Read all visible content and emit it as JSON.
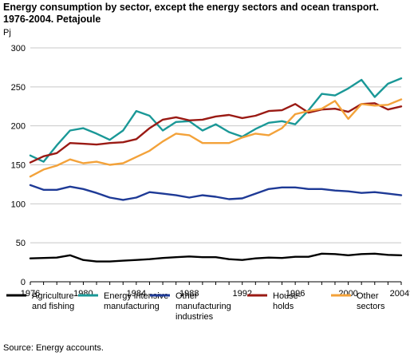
{
  "title_line1": "Energy consumption by sector, except the energy sectors and ocean transport.",
  "title_line2": "1976-2004. Petajoule",
  "source": "Source: Energy accounts.",
  "chart_data": {
    "type": "line",
    "title": "Energy consumption by sector, except the energy sectors and ocean transport. 1976-2004. Petajoule",
    "ylabel": "Pj",
    "xlabel": "",
    "ylim": [
      0,
      300
    ],
    "xlim": [
      1976,
      2004
    ],
    "yticks": [
      "0",
      "50",
      "100",
      "150",
      "200",
      "250",
      "300"
    ],
    "xtick_labels": [
      "1976",
      "1980",
      "1984",
      "1988",
      "1992",
      "1996",
      "2000",
      "2004*"
    ],
    "grid": "horizontal",
    "legend_position": "bottom",
    "x": [
      1976,
      1977,
      1978,
      1979,
      1980,
      1981,
      1982,
      1983,
      1984,
      1985,
      1986,
      1987,
      1988,
      1989,
      1990,
      1991,
      1992,
      1993,
      1994,
      1995,
      1996,
      1997,
      1998,
      1999,
      2000,
      2001,
      2002,
      2003,
      2004
    ],
    "series": [
      {
        "name": "Agriculture and fishing",
        "legend_lines": [
          "Agriculture",
          "and fishing"
        ],
        "color": "#000000",
        "values": [
          30,
          30.5,
          31,
          34,
          28,
          26,
          26,
          27,
          28,
          29,
          30.5,
          31.5,
          32.5,
          31.5,
          31.5,
          29,
          28,
          30,
          31,
          30.5,
          32,
          32,
          36,
          35.5,
          34,
          35.5,
          36,
          34.5,
          34
        ]
      },
      {
        "name": "Energy intensive manufacturing",
        "legend_lines": [
          "Energy intensive",
          "manufacturing"
        ],
        "color": "#1a9897",
        "values": [
          162,
          154,
          175,
          194,
          197,
          190,
          182,
          194,
          219,
          213,
          194,
          205,
          206,
          194,
          202,
          192,
          186,
          196,
          204,
          206,
          202,
          220,
          241,
          239,
          248,
          259,
          237,
          254,
          261
        ]
      },
      {
        "name": "Other manufacturing industries",
        "legend_lines": [
          "Other",
          "manufacturing",
          "industries"
        ],
        "color": "#1e3a96",
        "values": [
          124,
          118,
          118,
          122,
          119,
          114,
          108,
          105,
          108,
          115,
          113,
          111,
          108,
          111,
          109,
          106,
          107,
          113,
          119,
          121,
          121,
          119,
          119,
          117,
          116,
          114,
          115,
          113,
          111
        ]
      },
      {
        "name": "Households",
        "legend_lines": [
          "House-",
          "holds"
        ],
        "color": "#9a1a14",
        "values": [
          153,
          161,
          165,
          178,
          177,
          176,
          178,
          179,
          183,
          197,
          208,
          211,
          207,
          208,
          212,
          214,
          210,
          213,
          219,
          220,
          228,
          217,
          221,
          222,
          218,
          228,
          229,
          221,
          225
        ]
      },
      {
        "name": "Other sectors",
        "legend_lines": [
          "Other",
          "sectors"
        ],
        "color": "#f3a23a",
        "values": [
          135,
          144,
          149,
          157,
          152,
          154,
          150,
          152,
          160,
          168,
          180,
          190,
          188,
          178,
          178,
          178,
          185,
          190,
          188,
          197,
          215,
          219,
          222,
          232,
          209,
          228,
          226,
          227,
          234
        ]
      }
    ]
  }
}
